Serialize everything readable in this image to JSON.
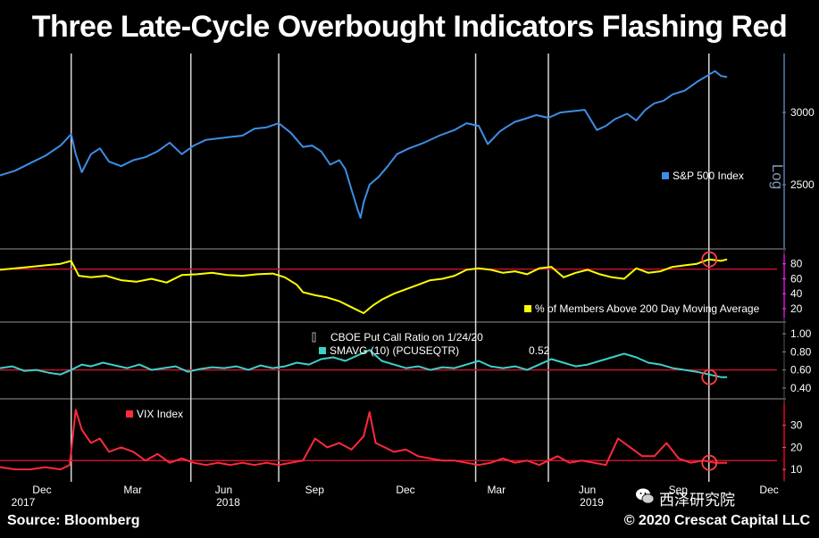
{
  "title": "Three Late-Cycle Overbought Indicators Flashing Red",
  "footer": {
    "source": "Source: Bloomberg",
    "copyright": "© 2020 Crescat Capital LLC",
    "watermark": "西泽研究院"
  },
  "colors": {
    "background": "#000000",
    "sp500": "#3d8ee6",
    "members": "#ffff00",
    "putcall": "#3fd0c8",
    "vix": "#ff2a3a",
    "threshold": "#c8102e",
    "marker": "#ff4040",
    "dates_vertical": "#d8d8d8",
    "axis": "#aaaaaa",
    "log_axis": "#3d5f8a"
  },
  "x_axis": {
    "months": [
      {
        "label": "Dec",
        "t": 0.5
      },
      {
        "label": "Mar",
        "t": 3.5
      },
      {
        "label": "Jun",
        "t": 6.5
      },
      {
        "label": "Sep",
        "t": 9.5
      },
      {
        "label": "Dec",
        "t": 12.5
      },
      {
        "label": "Mar",
        "t": 15.5
      },
      {
        "label": "Jun",
        "t": 18.5
      },
      {
        "label": "Sep",
        "t": 21.5
      },
      {
        "label": "Dec",
        "t": 24.5
      }
    ],
    "years": [
      {
        "label": "2017",
        "t": 0.5
      },
      {
        "label": "2018",
        "t": 7.0
      },
      {
        "label": "2019",
        "t": 19.0
      }
    ],
    "t_range": [
      0,
      25.5
    ]
  },
  "vertical_markers_t": [
    2.35,
    6.3,
    9.2,
    15.7,
    18.1,
    23.4
  ],
  "chart_data": [
    {
      "type": "line",
      "name": "S&P 500 Index",
      "y_axis_label": "Log",
      "log_scale": true,
      "ylim": [
        2150,
        3450
      ],
      "yticks": [
        2500,
        3000
      ],
      "x": [
        0,
        0.5,
        1,
        1.5,
        2,
        2.35,
        2.5,
        2.7,
        3,
        3.3,
        3.6,
        4,
        4.4,
        4.8,
        5.2,
        5.6,
        6,
        6.4,
        6.8,
        7.2,
        7.6,
        8,
        8.4,
        8.8,
        9.2,
        9.6,
        10,
        10.3,
        10.6,
        10.9,
        11.2,
        11.4,
        11.6,
        11.8,
        11.9,
        12.0,
        12.2,
        12.5,
        12.8,
        13.1,
        13.5,
        14,
        14.5,
        15,
        15.4,
        15.8,
        16.1,
        16.5,
        16.7,
        17,
        17.3,
        17.7,
        18.1,
        18.5,
        18.9,
        19.3,
        19.7,
        20,
        20.3,
        20.7,
        21,
        21.3,
        21.6,
        21.9,
        22.2,
        22.6,
        23,
        23.4,
        23.6,
        23.8,
        24
      ],
      "values": [
        2560,
        2590,
        2640,
        2690,
        2760,
        2840,
        2700,
        2580,
        2700,
        2740,
        2650,
        2620,
        2660,
        2680,
        2720,
        2780,
        2700,
        2760,
        2800,
        2810,
        2820,
        2830,
        2880,
        2890,
        2920,
        2850,
        2750,
        2760,
        2720,
        2630,
        2660,
        2600,
        2470,
        2350,
        2300,
        2390,
        2500,
        2550,
        2620,
        2700,
        2740,
        2780,
        2830,
        2870,
        2920,
        2900,
        2770,
        2860,
        2890,
        2930,
        2950,
        2980,
        2960,
        3000,
        3010,
        3020,
        2870,
        2900,
        2950,
        2990,
        2940,
        3020,
        3070,
        3090,
        3140,
        3170,
        3240,
        3300,
        3330,
        3290,
        3280
      ],
      "legend": "top-right"
    },
    {
      "type": "line",
      "name": "% of Members Above 200 Day Moving Average",
      "ylim": [
        8,
        94
      ],
      "yticks": [
        20,
        40,
        60,
        80
      ],
      "threshold": 73,
      "x": [
        0,
        0.5,
        1,
        1.5,
        2,
        2.35,
        2.6,
        3,
        3.5,
        4,
        4.5,
        5,
        5.5,
        6,
        6.5,
        7,
        7.5,
        8,
        8.5,
        9,
        9.4,
        9.8,
        10,
        10.4,
        10.8,
        11.2,
        11.6,
        12,
        12.3,
        12.6,
        13,
        13.4,
        13.8,
        14.2,
        14.6,
        15,
        15.4,
        15.8,
        16.2,
        16.6,
        17,
        17.4,
        17.8,
        18.2,
        18.6,
        19,
        19.4,
        19.8,
        20.2,
        20.6,
        21,
        21.4,
        21.8,
        22.2,
        22.6,
        23,
        23.4,
        23.8,
        24
      ],
      "values": [
        72,
        74,
        76,
        78,
        80,
        84,
        64,
        62,
        64,
        58,
        56,
        60,
        55,
        65,
        66,
        68,
        65,
        64,
        66,
        67,
        62,
        52,
        42,
        38,
        35,
        30,
        22,
        14,
        24,
        32,
        40,
        46,
        52,
        58,
        60,
        64,
        72,
        74,
        72,
        68,
        70,
        66,
        74,
        76,
        62,
        68,
        72,
        66,
        62,
        60,
        74,
        68,
        70,
        76,
        78,
        80,
        86,
        84,
        86
      ],
      "legend": "bottom-right"
    },
    {
      "type": "line",
      "name": "CBOE Put Call Ratio on 1/24/20",
      "series_label": "SMAVG (10) (PCUSEQTR)",
      "last_value_label": "0.52",
      "ylim": [
        0.33,
        1.08
      ],
      "yticks": [
        0.4,
        0.6,
        0.8,
        1.0
      ],
      "tick_labels": [
        "0.40",
        "0.60",
        "0.80",
        "1.00"
      ],
      "threshold": 0.6,
      "x": [
        0,
        0.4,
        0.8,
        1.2,
        1.6,
        2,
        2.35,
        2.7,
        3,
        3.4,
        3.8,
        4.2,
        4.6,
        5,
        5.4,
        5.8,
        6.2,
        6.6,
        7,
        7.4,
        7.8,
        8.2,
        8.6,
        9,
        9.4,
        9.8,
        10.2,
        10.6,
        11,
        11.4,
        11.8,
        12.2,
        12.6,
        13,
        13.4,
        13.8,
        14.2,
        14.6,
        15,
        15.4,
        15.8,
        16.2,
        16.6,
        17,
        17.4,
        17.8,
        18.2,
        18.6,
        19,
        19.4,
        19.8,
        20.2,
        20.6,
        21,
        21.4,
        21.8,
        22.2,
        22.6,
        23,
        23.4,
        23.8,
        24
      ],
      "values": [
        0.62,
        0.64,
        0.59,
        0.6,
        0.57,
        0.55,
        0.6,
        0.66,
        0.64,
        0.68,
        0.65,
        0.62,
        0.66,
        0.6,
        0.62,
        0.64,
        0.58,
        0.61,
        0.63,
        0.62,
        0.64,
        0.6,
        0.65,
        0.62,
        0.64,
        0.68,
        0.66,
        0.72,
        0.74,
        0.7,
        0.76,
        0.82,
        0.7,
        0.66,
        0.62,
        0.64,
        0.6,
        0.63,
        0.62,
        0.66,
        0.7,
        0.64,
        0.62,
        0.64,
        0.6,
        0.66,
        0.72,
        0.68,
        0.64,
        0.66,
        0.7,
        0.74,
        0.78,
        0.74,
        0.68,
        0.66,
        0.62,
        0.6,
        0.58,
        0.55,
        0.52,
        0.52
      ],
      "legend": "top-center"
    },
    {
      "type": "line",
      "name": "VIX Index",
      "ylim": [
        6,
        40
      ],
      "yticks": [
        10,
        20,
        30
      ],
      "threshold": 14,
      "x": [
        0,
        0.5,
        1,
        1.5,
        2,
        2.3,
        2.5,
        2.7,
        3,
        3.3,
        3.6,
        4,
        4.4,
        4.8,
        5.2,
        5.6,
        6,
        6.4,
        6.8,
        7.2,
        7.6,
        8,
        8.4,
        8.8,
        9.2,
        9.6,
        10,
        10.4,
        10.8,
        11.2,
        11.6,
        12,
        12.2,
        12.4,
        12.7,
        13,
        13.4,
        13.8,
        14.2,
        14.6,
        15,
        15.4,
        15.8,
        16.2,
        16.6,
        17,
        17.4,
        17.8,
        18.1,
        18.4,
        18.8,
        19.2,
        19.6,
        20,
        20.4,
        20.8,
        21.2,
        21.6,
        22,
        22.4,
        22.8,
        23.2,
        23.6,
        24
      ],
      "values": [
        11,
        10,
        10,
        11,
        10,
        12,
        37,
        28,
        22,
        24,
        18,
        20,
        18,
        14,
        17,
        13,
        15,
        13,
        12,
        13,
        12,
        13,
        12,
        13,
        12,
        13,
        14,
        24,
        20,
        22,
        19,
        25,
        36,
        22,
        20,
        18,
        19,
        16,
        15,
        14,
        14,
        13,
        12,
        13,
        15,
        13,
        14,
        12,
        14,
        16,
        13,
        14,
        13,
        12,
        24,
        20,
        16,
        16,
        22,
        15,
        13,
        14,
        13,
        13
      ],
      "legend": "top-left"
    }
  ]
}
